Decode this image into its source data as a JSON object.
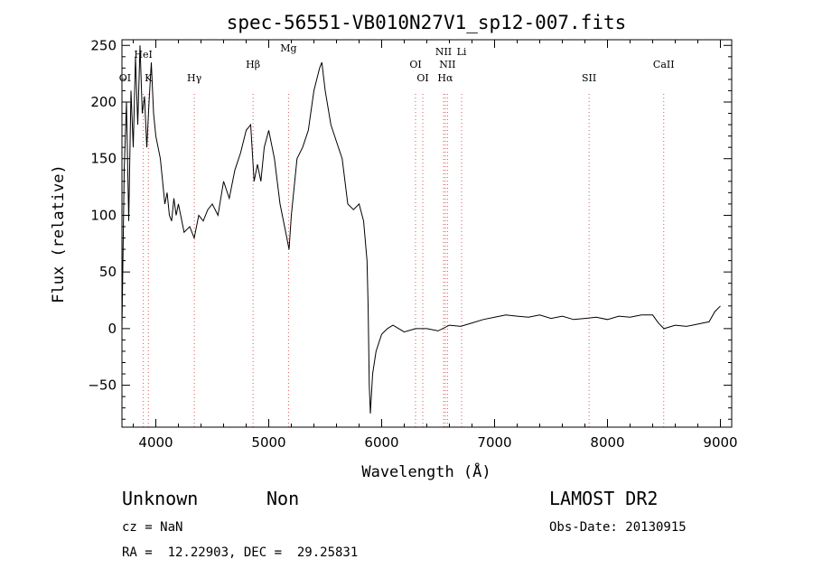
{
  "chart_data": {
    "type": "line",
    "title": "spec-56551-VB010N27V1_sp12-007.fits",
    "xlabel": "Wavelength (Å)",
    "ylabel": "Flux (relative)",
    "xlim": [
      3700,
      9100
    ],
    "ylim": [
      -87,
      255
    ],
    "xticks": [
      4000,
      5000,
      6000,
      7000,
      8000,
      9000
    ],
    "yticks": [
      -50,
      0,
      50,
      100,
      150,
      200,
      250
    ],
    "grid": false,
    "series": [
      {
        "x": [
          3700,
          3720,
          3740,
          3760,
          3780,
          3800,
          3820,
          3840,
          3860,
          3880,
          3900,
          3920,
          3940,
          3960,
          3980,
          4000,
          4020,
          4040,
          4060,
          4080,
          4100,
          4120,
          4140,
          4160,
          4180,
          4200,
          4250,
          4300,
          4340,
          4380,
          4420,
          4460,
          4500,
          4550,
          4600,
          4650,
          4700,
          4750,
          4800,
          4840,
          4870,
          4900,
          4930,
          4960,
          5000,
          5050,
          5100,
          5150,
          5180,
          5200,
          5250,
          5300,
          5350,
          5400,
          5450,
          5470,
          5500,
          5550,
          5600,
          5650,
          5700,
          5750,
          5800,
          5840,
          5870,
          5880,
          5890,
          5900,
          5920,
          5950,
          6000,
          6050,
          6100,
          6200,
          6300,
          6400,
          6500,
          6600,
          6700,
          6800,
          6900,
          7000,
          7100,
          7200,
          7300,
          7400,
          7500,
          7600,
          7700,
          7800,
          7900,
          8000,
          8100,
          8200,
          8300,
          8400,
          8450,
          8500,
          8600,
          8700,
          8800,
          8900,
          8950,
          9000
        ],
        "y": [
          0,
          140,
          200,
          95,
          210,
          160,
          240,
          180,
          250,
          190,
          205,
          160,
          200,
          235,
          190,
          170,
          160,
          150,
          130,
          110,
          120,
          100,
          95,
          115,
          100,
          110,
          85,
          90,
          80,
          100,
          95,
          105,
          110,
          100,
          130,
          115,
          140,
          155,
          175,
          180,
          130,
          145,
          130,
          160,
          175,
          150,
          110,
          85,
          70,
          100,
          150,
          160,
          175,
          210,
          230,
          235,
          210,
          180,
          165,
          150,
          110,
          105,
          110,
          95,
          60,
          20,
          -50,
          -75,
          -40,
          -20,
          -5,
          0,
          3,
          -3,
          0,
          0,
          -2,
          3,
          2,
          5,
          8,
          10,
          12,
          11,
          10,
          12,
          9,
          11,
          8,
          9,
          10,
          8,
          11,
          10,
          12,
          12,
          5,
          0,
          3,
          2,
          4,
          6,
          15,
          20
        ]
      }
    ],
    "annotations": [
      {
        "label": "OI",
        "x": 3727,
        "show_line": false
      },
      {
        "label": "HeI",
        "x": 3889
      },
      {
        "label": "K",
        "x": 3934
      },
      {
        "label": "Hγ",
        "x": 4341
      },
      {
        "label": "Hβ",
        "x": 4861
      },
      {
        "label": "Mg",
        "x": 5175
      },
      {
        "label": "OI",
        "x": 6300
      },
      {
        "label": "OI",
        "x": 6364
      },
      {
        "label": "NII",
        "x": 6548
      },
      {
        "label": "Hα",
        "x": 6563
      },
      {
        "label": "NII",
        "x": 6583
      },
      {
        "label": "Li",
        "x": 6708
      },
      {
        "label": "SII",
        "x": 7837
      },
      {
        "label": "CaII",
        "x": 8498
      }
    ],
    "line_color": "#000000",
    "marker_color": "#e05050"
  },
  "info": {
    "class": "Unknown",
    "subclass": "Non",
    "survey": "LAMOST DR2",
    "cz": "cz = NaN",
    "obs_date": "Obs-Date: 20130915",
    "radec": "RA =  12.22903, DEC =  29.25831"
  }
}
